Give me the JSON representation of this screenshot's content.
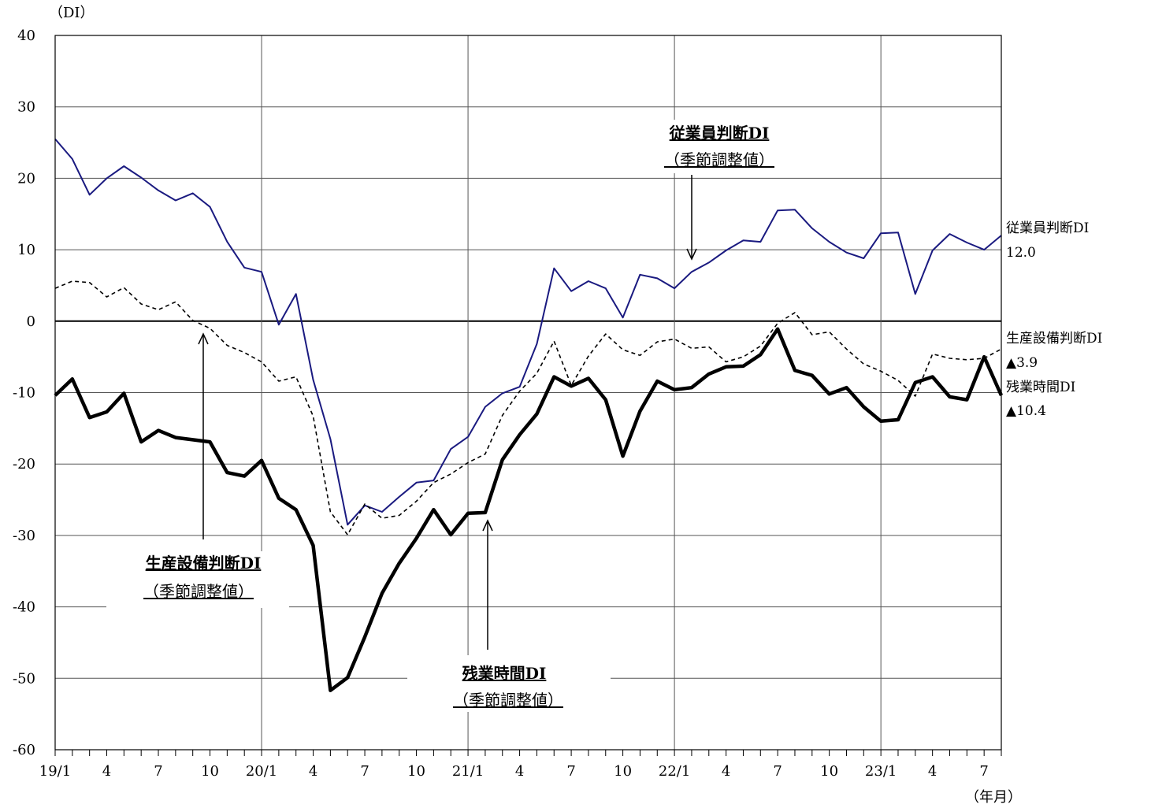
{
  "chart_data": {
    "type": "line",
    "ylabel": "（DI）",
    "xlabel": "（年月）",
    "ylim": [
      -60,
      40
    ],
    "yticks": [
      40,
      30,
      20,
      10,
      0,
      -10,
      -20,
      -30,
      -40,
      -50,
      -60
    ],
    "ytick_labels": [
      "40",
      "30",
      "20",
      "10",
      "0",
      "-10",
      "-20",
      "-30",
      "-40",
      "-50",
      "-60"
    ],
    "x_range": [
      "19/1",
      "23/8"
    ],
    "xtick_labels": [
      "19/1",
      "4",
      "7",
      "10",
      "20/1",
      "4",
      "7",
      "10",
      "21/1",
      "4",
      "7",
      "10",
      "22/1",
      "4",
      "7",
      "10",
      "23/1",
      "4",
      "7"
    ],
    "grid": true,
    "series": [
      {
        "name": "従業員判断DI",
        "label": "従業員判断DI",
        "latest_label": "12.0",
        "annotation": [
          "従業員判断DI",
          "（季節調整値）"
        ],
        "color": "#1a1a80",
        "style": "solid",
        "values": [
          25.5,
          22.7,
          17.7,
          20.0,
          21.7,
          20.1,
          18.3,
          16.9,
          17.9,
          16.0,
          11.1,
          7.5,
          6.9,
          -0.5,
          3.8,
          -8.2,
          -16.5,
          -28.5,
          -25.8,
          -26.7,
          -24.6,
          -22.6,
          -22.3,
          -17.9,
          -16.2,
          -12.0,
          -10.1,
          -9.2,
          -3.2,
          7.4,
          4.2,
          5.6,
          4.6,
          0.5,
          6.5,
          6.0,
          4.6,
          6.9,
          8.2,
          9.9,
          11.3,
          11.1,
          15.5,
          15.6,
          13.0,
          11.1,
          9.6,
          8.8,
          12.3,
          12.4,
          3.8,
          9.9,
          12.2,
          11.0,
          10.0,
          12.0
        ]
      },
      {
        "name": "生産設備判断DI",
        "label": "生産設備判断DI",
        "latest_label": "▲3.9",
        "annotation": [
          "生産設備判断DI",
          "（季節調整値）"
        ],
        "color": "#000000",
        "style": "dashed",
        "values": [
          4.6,
          5.6,
          5.4,
          3.4,
          4.7,
          2.4,
          1.6,
          2.7,
          0.1,
          -1.0,
          -3.4,
          -4.4,
          -5.7,
          -8.4,
          -7.8,
          -13.3,
          -26.7,
          -29.9,
          -25.6,
          -27.6,
          -27.2,
          -25.2,
          -22.6,
          -21.4,
          -19.8,
          -18.6,
          -13.2,
          -9.8,
          -7.3,
          -2.8,
          -9.0,
          -4.9,
          -1.8,
          -4.0,
          -4.8,
          -2.9,
          -2.5,
          -3.8,
          -3.6,
          -5.7,
          -5.0,
          -3.5,
          -0.3,
          1.2,
          -1.9,
          -1.5,
          -3.9,
          -6.0,
          -7.0,
          -8.3,
          -10.5,
          -4.6,
          -5.2,
          -5.4,
          -5.2,
          -3.9
        ]
      },
      {
        "name": "残業時間DI",
        "label": "残業時間DI",
        "latest_label": "▲10.4",
        "annotation": [
          "残業時間DI",
          "（季節調整値）"
        ],
        "color": "#000000",
        "style": "bold",
        "values": [
          -10.4,
          -8.1,
          -13.5,
          -12.7,
          -10.1,
          -16.9,
          -15.3,
          -16.3,
          -16.6,
          -16.9,
          -21.2,
          -21.7,
          -19.5,
          -24.8,
          -26.4,
          -31.4,
          -51.7,
          -49.9,
          -44.2,
          -38.1,
          -33.9,
          -30.4,
          -26.4,
          -29.9,
          -26.9,
          -26.8,
          -19.4,
          -15.9,
          -13.0,
          -7.8,
          -9.1,
          -8.0,
          -11.0,
          -18.9,
          -12.6,
          -8.4,
          -9.6,
          -9.3,
          -7.4,
          -6.4,
          -6.3,
          -4.7,
          -1.1,
          -6.9,
          -7.6,
          -10.2,
          -9.3,
          -12.0,
          -14.0,
          -13.8,
          -8.6,
          -7.8,
          -10.6,
          -11.0,
          -5.0,
          -10.4
        ]
      }
    ]
  }
}
